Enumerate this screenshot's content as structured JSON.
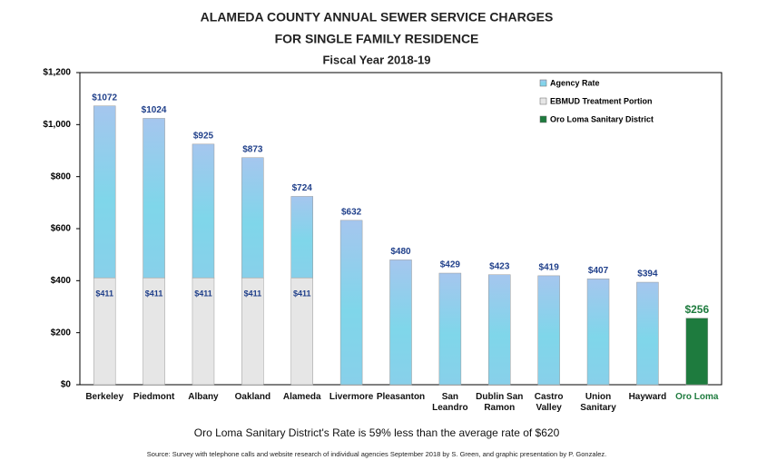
{
  "chart_data": {
    "type": "stacked-bar",
    "title": [
      "ALAMEDA COUNTY ANNUAL SEWER SERVICE CHARGES",
      "FOR SINGLE FAMILY RESIDENCE"
    ],
    "subtitle": "Fiscal Year 2018-19",
    "categories": [
      "Berkeley",
      "Piedmont",
      "Albany",
      "Oakland",
      "Alameda",
      "Livermore",
      "Pleasanton",
      "San Leandro",
      "Dublin San Ramon",
      "Castro Valley",
      "Union Sanitary",
      "Hayward",
      "Oro Loma"
    ],
    "series": [
      {
        "name": "EBMUD Treatment Portion",
        "color": "#e6e6e6",
        "values": [
          411,
          411,
          411,
          411,
          411,
          null,
          null,
          null,
          null,
          null,
          null,
          null,
          null
        ],
        "value_labels": [
          "$411",
          "$411",
          "$411",
          "$411",
          "$411",
          null,
          null,
          null,
          null,
          null,
          null,
          null,
          null
        ]
      },
      {
        "name": "Agency Rate",
        "color": "#8fcfee",
        "values": [
          661,
          613,
          514,
          462,
          313,
          632,
          480,
          429,
          423,
          419,
          407,
          394,
          null
        ]
      },
      {
        "name": "Oro Loma Sanitary District",
        "color": "#1e7b3e",
        "values": [
          null,
          null,
          null,
          null,
          null,
          null,
          null,
          null,
          null,
          null,
          null,
          null,
          256
        ],
        "value_labels": [
          null,
          null,
          null,
          null,
          null,
          null,
          null,
          null,
          null,
          null,
          null,
          null,
          "$256"
        ]
      }
    ],
    "total_labels": [
      "$1072",
      "$1024",
      "$925",
      "$873",
      "$724",
      "$632",
      "$480",
      "$429",
      "$423",
      "$419",
      "$407",
      "$394",
      null
    ],
    "legend_order": [
      1,
      0,
      2
    ],
    "legend": "top-right",
    "ylim": [
      0,
      1200
    ],
    "yticks": [
      {
        "value": 0,
        "label": "$0"
      },
      {
        "value": 200,
        "label": "$200"
      },
      {
        "value": 400,
        "label": "$400"
      },
      {
        "value": 600,
        "label": "$600"
      },
      {
        "value": 800,
        "label": "$800"
      },
      {
        "value": 1000,
        "label": "$1,000"
      },
      {
        "value": 1200,
        "label": "$1,200"
      }
    ],
    "annotation": "Oro Loma Sanitary District's Rate is 59% less than the average rate of $620",
    "source": "Source: Survey with telephone calls and website research of individual agencies September 2018 by S. Green, and graphic presentation by P. Gonzalez."
  }
}
